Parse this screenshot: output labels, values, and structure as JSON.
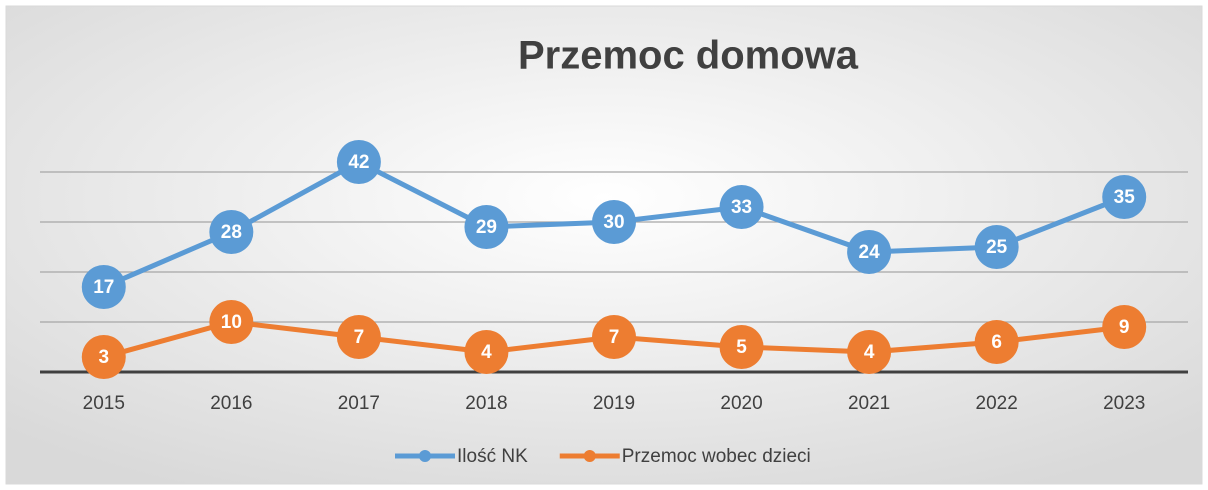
{
  "chart_data": {
    "type": "line",
    "title": "Przemoc domowa",
    "categories": [
      "2015",
      "2016",
      "2017",
      "2018",
      "2019",
      "2020",
      "2021",
      "2022",
      "2023"
    ],
    "series": [
      {
        "name": "Ilość NK",
        "color": "#5b9bd5",
        "values": [
          17,
          28,
          42,
          29,
          30,
          33,
          24,
          25,
          35
        ]
      },
      {
        "name": "Przemoc wobec dzieci",
        "color": "#ed7d31",
        "values": [
          3,
          10,
          7,
          4,
          7,
          5,
          4,
          6,
          9
        ]
      }
    ],
    "ylim": [
      0,
      50
    ],
    "yticks": [
      0,
      10,
      20,
      30,
      40
    ],
    "grid": true,
    "legend": "bottom"
  }
}
